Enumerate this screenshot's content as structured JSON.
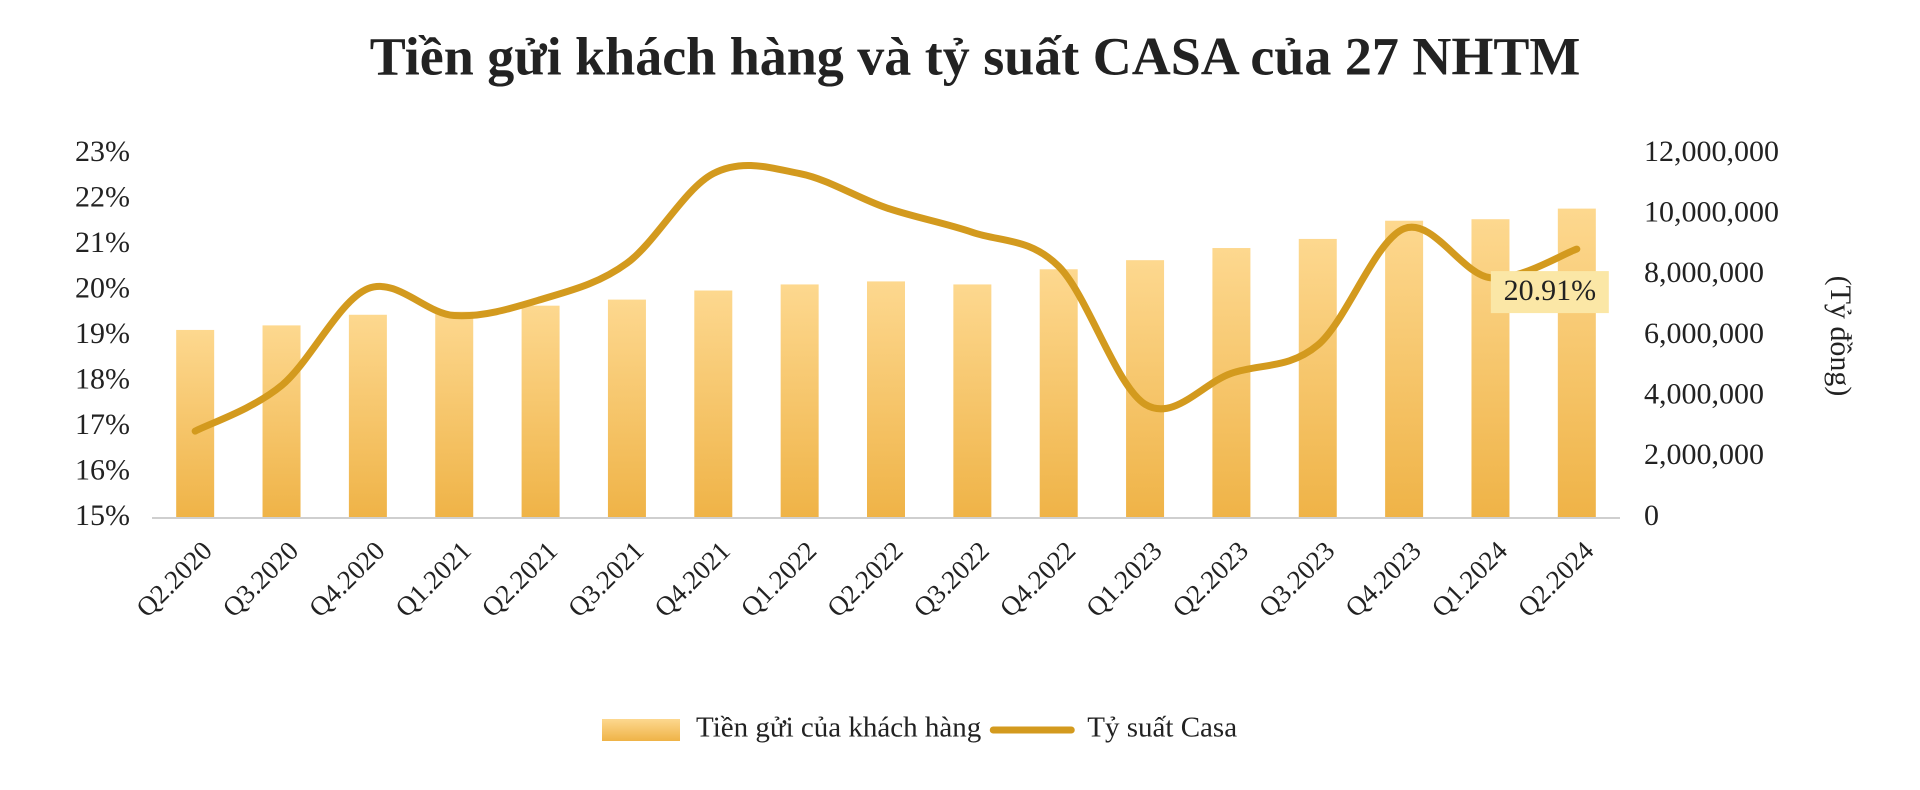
{
  "chart_data": {
    "type": "bar-line",
    "title": "Tiền gửi khách hàng và tỷ suất CASA của 27 NHTM",
    "y2_label": "(Tỷ đồng)",
    "categories": [
      "Q2.2020",
      "Q3.2020",
      "Q4.2020",
      "Q1.2021",
      "Q2.2021",
      "Q3.2021",
      "Q4.2021",
      "Q1.2022",
      "Q2.2022",
      "Q3.2022",
      "Q4.2022",
      "Q1.2023",
      "Q2.2023",
      "Q3.2023",
      "Q4.2023",
      "Q1.2024",
      "Q2.2024"
    ],
    "series": [
      {
        "name": "Tiền gửi của khách hàng",
        "type": "bar",
        "axis": "y2",
        "color": "#f5c15e",
        "values": [
          6200000,
          6350000,
          6700000,
          6800000,
          7000000,
          7200000,
          7500000,
          7700000,
          7800000,
          7700000,
          8200000,
          8500000,
          8900000,
          9200000,
          9800000,
          9850000,
          10200000
        ]
      },
      {
        "name": "Tỷ suất Casa",
        "type": "line",
        "axis": "y",
        "color": "#d39a1e",
        "values": [
          16.91,
          17.91,
          20.04,
          19.45,
          19.8,
          20.6,
          22.57,
          22.57,
          21.82,
          21.28,
          20.53,
          17.5,
          18.18,
          18.8,
          21.36,
          20.28,
          20.91
        ],
        "value_labels": [
          null,
          null,
          null,
          null,
          null,
          null,
          null,
          null,
          null,
          null,
          null,
          null,
          null,
          null,
          null,
          null,
          "20.91%"
        ]
      }
    ],
    "ylim": [
      15,
      23
    ],
    "yticks": [
      {
        "value": 15,
        "label": "15%"
      },
      {
        "value": 16,
        "label": "16%"
      },
      {
        "value": 17,
        "label": "17%"
      },
      {
        "value": 18,
        "label": "18%"
      },
      {
        "value": 19,
        "label": "19%"
      },
      {
        "value": 20,
        "label": "20%"
      },
      {
        "value": 21,
        "label": "21%"
      },
      {
        "value": 22,
        "label": "22%"
      },
      {
        "value": 23,
        "label": "23%"
      }
    ],
    "y2lim": [
      0,
      12000000
    ],
    "y2ticks": [
      0,
      {
        "value": 2000000,
        "label": "2,000,000"
      },
      {
        "value": 4000000,
        "label": "4,000,000"
      },
      {
        "value": 6000000,
        "label": "6,000,000"
      },
      {
        "value": 8000000,
        "label": "8,000,000"
      },
      {
        "value": 10000000,
        "label": "10,000,000"
      },
      {
        "value": 12000000,
        "label": "12,000,000"
      }
    ],
    "legend": "bottom"
  }
}
